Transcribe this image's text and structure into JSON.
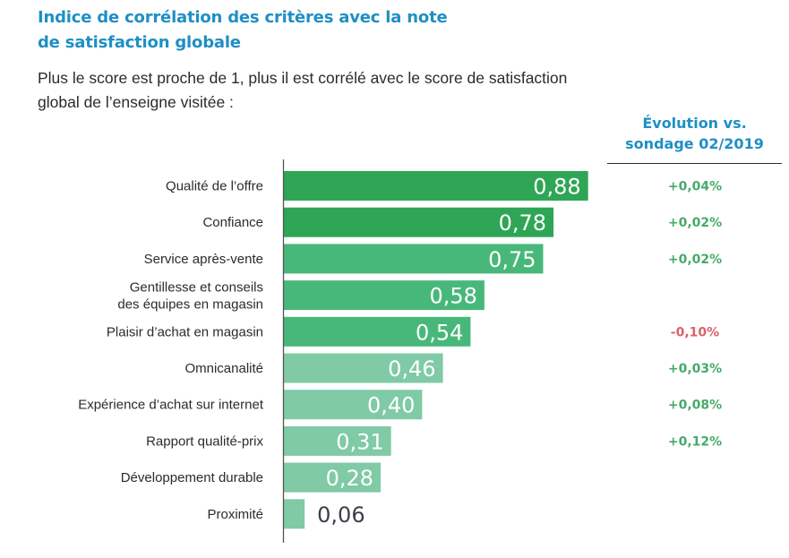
{
  "header": {
    "title_line1": "Indice de corrélation des critères avec la note",
    "title_line2": "de satisfaction globale",
    "subtitle_line1": "Plus le score est proche de 1, plus il est corrélé avec le score de satisfaction",
    "subtitle_line2": "global de l’enseigne visitée :",
    "evolution_line1": "Évolution vs.",
    "evolution_line2": "sondage 02/2019"
  },
  "colors": {
    "title": "#1f8fc4",
    "bar_dark": "#2ea655",
    "bar_mid": "#48b87a",
    "bar_light": "#80caa6",
    "positive": "#46ab6a",
    "negative": "#d9626a",
    "value_inside": "#ffffff",
    "value_outside": "#3a3f4a"
  },
  "chart_data": {
    "type": "bar",
    "orientation": "horizontal",
    "title": "Indice de corrélation des critères avec la note de satisfaction globale",
    "xlabel": "",
    "ylabel": "",
    "xlim": [
      0,
      1
    ],
    "grid": false,
    "categories": [
      "Qualité de l’offre",
      "Confiance",
      "Service après-vente",
      "Gentillesse et conseils\ndes équipes en magasin",
      "Plaisir d’achat en magasin",
      "Omnicanalité",
      "Expérience d’achat sur internet",
      "Rapport qualité-prix",
      "Développement durable",
      "Proximité"
    ],
    "values": [
      0.88,
      0.78,
      0.75,
      0.58,
      0.54,
      0.46,
      0.4,
      0.31,
      0.28,
      0.06
    ],
    "value_labels": [
      "0,88",
      "0,78",
      "0,75",
      "0,58",
      "0,54",
      "0,46",
      "0,40",
      "0,31",
      "0,28",
      "0,06"
    ],
    "bar_tiers": [
      "dark",
      "dark",
      "mid",
      "mid",
      "mid",
      "light",
      "light",
      "light",
      "light",
      "light"
    ],
    "evolution": {
      "title": "Évolution vs. sondage 02/2019",
      "labels": [
        "+0,04%",
        "+0,02%",
        "+0,02%",
        "",
        "-0,10%",
        "+0,03%",
        "+0,08%",
        "+0,12%",
        "",
        ""
      ],
      "values": [
        0.04,
        0.02,
        0.02,
        null,
        -0.1,
        0.03,
        0.08,
        0.12,
        null,
        null
      ]
    }
  }
}
